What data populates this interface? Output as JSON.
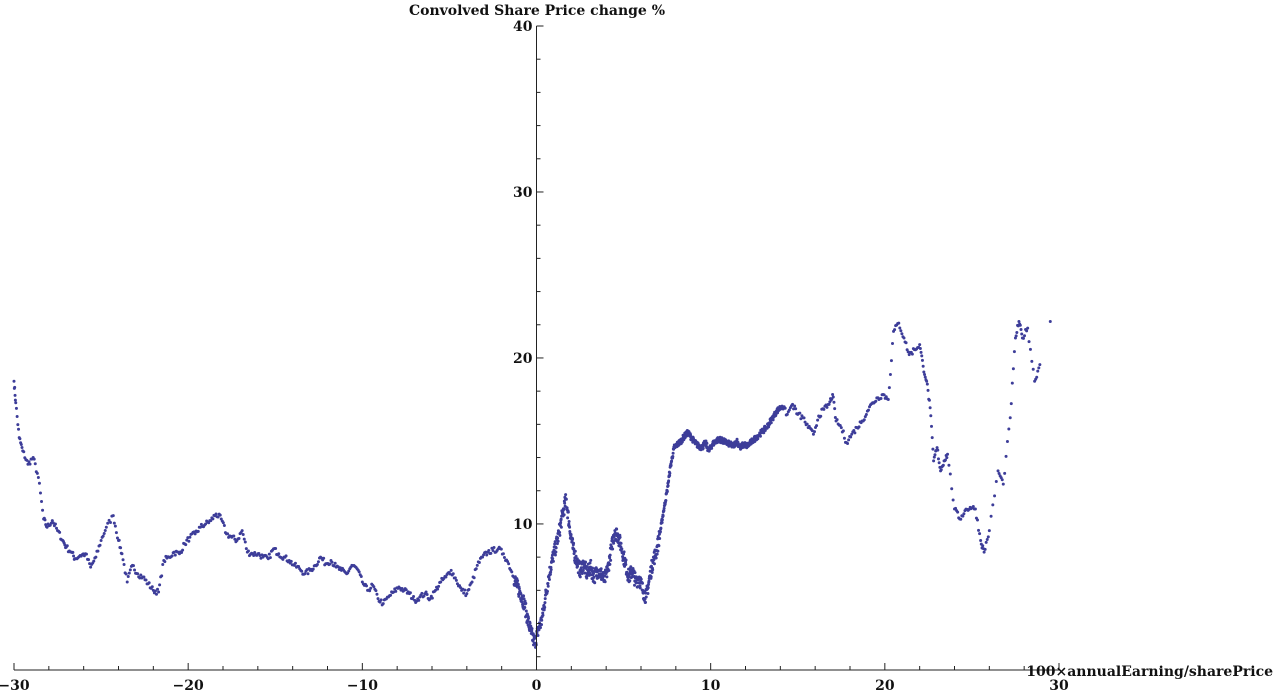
{
  "chart_data": {
    "type": "scatter",
    "title": "",
    "xlabel": "100×annualEarning/sharePrice",
    "ylabel": "Convolved Share Price change %",
    "xlim": [
      -30,
      30
    ],
    "ylim": [
      1.2,
      40
    ],
    "x_ticks": [
      -30,
      -20,
      -10,
      0,
      10,
      20,
      30
    ],
    "x_tick_labels": [
      "−30",
      "−20",
      "−10",
      "0",
      "10",
      "20",
      "30"
    ],
    "y_ticks": [
      10,
      20,
      30,
      40
    ],
    "y_tick_labels": [
      "10",
      "20",
      "30",
      "40"
    ],
    "grid": false,
    "legend": "none",
    "point_color": "#3d3d99",
    "series": [
      {
        "points": [
          [
            -30.0,
            18.6
          ],
          [
            -29.9,
            17.3
          ],
          [
            -29.7,
            15.2
          ],
          [
            -29.5,
            14.4
          ],
          [
            -29.2,
            13.6
          ],
          [
            -28.9,
            14.0
          ],
          [
            -28.6,
            12.8
          ],
          [
            -28.3,
            10.3
          ],
          [
            -28.1,
            9.8
          ],
          [
            -27.8,
            10.2
          ],
          [
            -27.5,
            9.6
          ],
          [
            -27.2,
            9.0
          ],
          [
            -27.0,
            8.6
          ],
          [
            -26.7,
            8.3
          ],
          [
            -26.5,
            7.9
          ],
          [
            -26.2,
            8.1
          ],
          [
            -25.9,
            8.2
          ],
          [
            -25.6,
            7.4
          ],
          [
            -25.3,
            8.0
          ],
          [
            -25.0,
            9.0
          ],
          [
            -24.7,
            9.8
          ],
          [
            -24.3,
            10.5
          ],
          [
            -24.0,
            9.0
          ],
          [
            -23.8,
            8.2
          ],
          [
            -23.5,
            6.5
          ],
          [
            -23.2,
            7.5
          ],
          [
            -22.9,
            7.0
          ],
          [
            -22.6,
            6.8
          ],
          [
            -22.3,
            6.4
          ],
          [
            -22.0,
            6.0
          ],
          [
            -21.7,
            5.9
          ],
          [
            -21.4,
            7.8
          ],
          [
            -21.1,
            8.0
          ],
          [
            -20.8,
            8.3
          ],
          [
            -20.5,
            8.2
          ],
          [
            -20.2,
            8.8
          ],
          [
            -19.9,
            9.2
          ],
          [
            -19.6,
            9.4
          ],
          [
            -19.3,
            9.8
          ],
          [
            -19.0,
            10.0
          ],
          [
            -18.7,
            10.2
          ],
          [
            -18.4,
            10.6
          ],
          [
            -18.1,
            10.3
          ],
          [
            -17.8,
            9.4
          ],
          [
            -17.5,
            9.2
          ],
          [
            -17.2,
            9.0
          ],
          [
            -16.9,
            9.6
          ],
          [
            -16.6,
            8.3
          ],
          [
            -16.3,
            8.2
          ],
          [
            -16.0,
            8.2
          ],
          [
            -15.7,
            8.0
          ],
          [
            -15.4,
            7.9
          ],
          [
            -15.1,
            8.5
          ],
          [
            -14.8,
            8.2
          ],
          [
            -14.5,
            8.0
          ],
          [
            -14.2,
            7.8
          ],
          [
            -13.9,
            7.5
          ],
          [
            -13.6,
            7.3
          ],
          [
            -13.3,
            7.0
          ],
          [
            -13.0,
            7.2
          ],
          [
            -12.7,
            7.5
          ],
          [
            -12.4,
            8.0
          ],
          [
            -12.1,
            7.6
          ],
          [
            -11.8,
            7.8
          ],
          [
            -11.5,
            7.4
          ],
          [
            -11.2,
            7.2
          ],
          [
            -10.9,
            7.0
          ],
          [
            -10.6,
            7.5
          ],
          [
            -10.3,
            7.3
          ],
          [
            -10.0,
            6.5
          ],
          [
            -9.7,
            6.0
          ],
          [
            -9.4,
            6.3
          ],
          [
            -9.1,
            5.5
          ],
          [
            -8.8,
            5.2
          ],
          [
            -8.5,
            5.6
          ],
          [
            -8.2,
            5.9
          ],
          [
            -7.9,
            6.2
          ],
          [
            -7.6,
            6.0
          ],
          [
            -7.3,
            5.8
          ],
          [
            -7.0,
            5.4
          ],
          [
            -6.7,
            5.6
          ],
          [
            -6.4,
            5.8
          ],
          [
            -6.1,
            5.5
          ],
          [
            -5.8,
            6.0
          ],
          [
            -5.5,
            6.5
          ],
          [
            -5.2,
            6.8
          ],
          [
            -4.9,
            7.2
          ],
          [
            -4.6,
            6.6
          ],
          [
            -4.3,
            6.0
          ],
          [
            -4.0,
            5.8
          ],
          [
            -3.7,
            6.5
          ],
          [
            -3.4,
            7.5
          ],
          [
            -3.1,
            8.0
          ],
          [
            -2.8,
            8.3
          ],
          [
            -2.5,
            8.4
          ],
          [
            -2.2,
            8.5
          ],
          [
            -1.9,
            8.2
          ],
          [
            -1.6,
            7.6
          ],
          [
            -1.3,
            6.8
          ],
          [
            -1.1,
            6.2
          ],
          [
            -0.9,
            5.8
          ],
          [
            -0.7,
            5.2
          ],
          [
            -0.5,
            4.2
          ],
          [
            -0.3,
            3.4
          ],
          [
            -0.1,
            2.8
          ],
          [
            0.1,
            3.6
          ],
          [
            0.3,
            4.2
          ],
          [
            0.5,
            5.5
          ],
          [
            0.7,
            6.8
          ],
          [
            0.9,
            7.8
          ],
          [
            1.1,
            8.6
          ],
          [
            1.3,
            9.5
          ],
          [
            1.5,
            10.6
          ],
          [
            1.7,
            11.5
          ],
          [
            1.9,
            9.8
          ],
          [
            2.1,
            8.5
          ],
          [
            2.3,
            7.8
          ],
          [
            2.5,
            7.2
          ],
          [
            2.7,
            7.6
          ],
          [
            2.9,
            7.0
          ],
          [
            3.1,
            7.4
          ],
          [
            3.3,
            6.8
          ],
          [
            3.5,
            7.2
          ],
          [
            3.7,
            7.0
          ],
          [
            3.9,
            6.6
          ],
          [
            4.1,
            7.3
          ],
          [
            4.3,
            8.5
          ],
          [
            4.5,
            9.6
          ],
          [
            4.7,
            9.2
          ],
          [
            4.9,
            8.5
          ],
          [
            5.1,
            7.6
          ],
          [
            5.3,
            6.8
          ],
          [
            5.5,
            7.2
          ],
          [
            5.7,
            6.5
          ],
          [
            5.9,
            6.8
          ],
          [
            6.1,
            6.0
          ],
          [
            6.3,
            5.6
          ],
          [
            6.5,
            6.8
          ],
          [
            6.7,
            7.8
          ],
          [
            6.9,
            8.4
          ],
          [
            7.1,
            9.5
          ],
          [
            7.3,
            10.8
          ],
          [
            7.5,
            12.0
          ],
          [
            7.7,
            13.5
          ],
          [
            7.9,
            14.6
          ],
          [
            8.1,
            14.8
          ],
          [
            8.3,
            15.0
          ],
          [
            8.5,
            15.3
          ],
          [
            8.7,
            15.5
          ],
          [
            8.9,
            15.2
          ],
          [
            9.1,
            14.9
          ],
          [
            9.3,
            14.7
          ],
          [
            9.5,
            14.6
          ],
          [
            9.7,
            14.9
          ],
          [
            9.9,
            14.4
          ],
          [
            10.1,
            14.8
          ],
          [
            10.3,
            15.0
          ],
          [
            10.5,
            15.1
          ],
          [
            10.7,
            15.0
          ],
          [
            10.9,
            14.9
          ],
          [
            11.1,
            14.8
          ],
          [
            11.3,
            14.7
          ],
          [
            11.5,
            15.0
          ],
          [
            11.7,
            14.6
          ],
          [
            11.9,
            14.8
          ],
          [
            12.1,
            14.7
          ],
          [
            12.3,
            14.9
          ],
          [
            12.6,
            15.2
          ],
          [
            12.9,
            15.5
          ],
          [
            13.2,
            15.8
          ],
          [
            13.5,
            16.3
          ],
          [
            13.8,
            16.8
          ],
          [
            14.1,
            17.1
          ],
          [
            14.4,
            16.6
          ],
          [
            14.7,
            17.2
          ],
          [
            15.0,
            16.6
          ],
          [
            15.3,
            16.4
          ],
          [
            15.6,
            15.8
          ],
          [
            15.9,
            15.4
          ],
          [
            16.2,
            16.5
          ],
          [
            16.5,
            16.9
          ],
          [
            16.8,
            17.2
          ],
          [
            17.0,
            17.8
          ],
          [
            17.2,
            16.2
          ],
          [
            17.5,
            15.8
          ],
          [
            17.8,
            14.9
          ],
          [
            18.1,
            15.4
          ],
          [
            18.4,
            15.8
          ],
          [
            18.7,
            16.2
          ],
          [
            19.0,
            16.8
          ],
          [
            19.3,
            17.3
          ],
          [
            19.6,
            17.6
          ],
          [
            19.9,
            17.8
          ],
          [
            20.2,
            17.5
          ],
          [
            20.5,
            21.6
          ],
          [
            20.8,
            22.1
          ],
          [
            21.1,
            21.2
          ],
          [
            21.4,
            20.2
          ],
          [
            21.7,
            20.5
          ],
          [
            22.0,
            20.8
          ],
          [
            22.2,
            19.5
          ],
          [
            22.4,
            18.6
          ],
          [
            22.6,
            17.0
          ],
          [
            22.8,
            13.8
          ],
          [
            23.0,
            14.6
          ],
          [
            23.2,
            13.2
          ],
          [
            23.4,
            13.8
          ],
          [
            23.6,
            14.2
          ],
          [
            24.0,
            10.9
          ],
          [
            24.3,
            10.3
          ],
          [
            24.6,
            10.8
          ],
          [
            24.9,
            11.0
          ],
          [
            25.2,
            10.9
          ],
          [
            25.5,
            9.0
          ],
          [
            25.7,
            8.3
          ],
          [
            26.0,
            9.6
          ],
          [
            26.5,
            13.2
          ],
          [
            26.8,
            12.4
          ],
          [
            27.2,
            16.4
          ],
          [
            27.5,
            21.2
          ],
          [
            27.7,
            22.2
          ],
          [
            27.9,
            21.2
          ],
          [
            28.2,
            21.8
          ],
          [
            28.6,
            18.6
          ],
          [
            28.9,
            19.6
          ],
          [
            29.5,
            22.2
          ]
        ]
      }
    ]
  }
}
